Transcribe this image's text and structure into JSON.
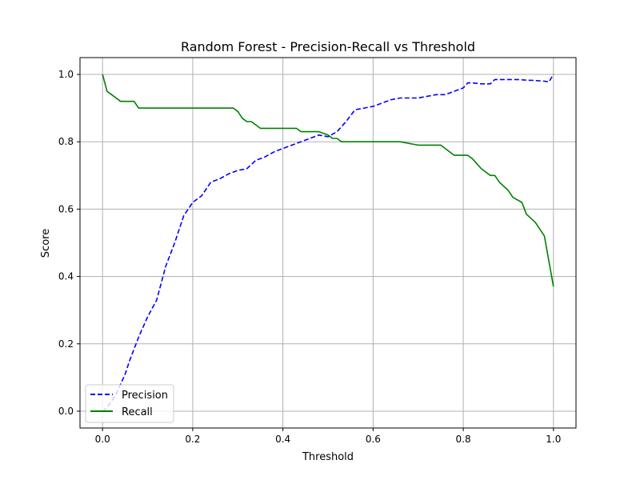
{
  "chart_data": {
    "type": "line",
    "title": "Random Forest - Precision-Recall vs Threshold",
    "xlabel": "Threshold",
    "ylabel": "Score",
    "xlim": [
      -0.05,
      1.05
    ],
    "ylim": [
      -0.05,
      1.05
    ],
    "x_ticks": [
      0.0,
      0.2,
      0.4,
      0.6,
      0.8,
      1.0
    ],
    "x_tick_labels": [
      "0.0",
      "0.2",
      "0.4",
      "0.6",
      "0.8",
      "1.0"
    ],
    "y_ticks": [
      0.0,
      0.2,
      0.4,
      0.6,
      0.8,
      1.0
    ],
    "y_tick_labels": [
      "0.0",
      "0.2",
      "0.4",
      "0.6",
      "0.8",
      "1.0"
    ],
    "grid": true,
    "legend_position": "lower-left",
    "series": [
      {
        "name": "Precision",
        "color": "#0000ff",
        "style": "dashed",
        "x": [
          0.0,
          0.01,
          0.02,
          0.03,
          0.04,
          0.05,
          0.06,
          0.08,
          0.1,
          0.12,
          0.14,
          0.16,
          0.18,
          0.2,
          0.22,
          0.24,
          0.26,
          0.28,
          0.3,
          0.32,
          0.34,
          0.36,
          0.38,
          0.4,
          0.42,
          0.44,
          0.46,
          0.48,
          0.5,
          0.52,
          0.54,
          0.56,
          0.58,
          0.6,
          0.62,
          0.64,
          0.66,
          0.68,
          0.7,
          0.72,
          0.74,
          0.76,
          0.78,
          0.8,
          0.81,
          0.82,
          0.84,
          0.86,
          0.87,
          0.88,
          0.9,
          0.92,
          0.94,
          0.96,
          0.98,
          0.99,
          1.0
        ],
        "values": [
          0.0,
          0.01,
          0.03,
          0.05,
          0.08,
          0.11,
          0.15,
          0.22,
          0.28,
          0.33,
          0.43,
          0.5,
          0.58,
          0.62,
          0.64,
          0.68,
          0.69,
          0.705,
          0.715,
          0.72,
          0.745,
          0.755,
          0.77,
          0.78,
          0.79,
          0.8,
          0.81,
          0.82,
          0.815,
          0.83,
          0.86,
          0.895,
          0.9,
          0.905,
          0.915,
          0.925,
          0.93,
          0.93,
          0.93,
          0.935,
          0.94,
          0.94,
          0.95,
          0.96,
          0.975,
          0.975,
          0.972,
          0.972,
          0.985,
          0.985,
          0.985,
          0.985,
          0.983,
          0.982,
          0.98,
          0.978,
          1.0
        ]
      },
      {
        "name": "Recall",
        "color": "#008000",
        "style": "solid",
        "x": [
          0.0,
          0.01,
          0.02,
          0.04,
          0.05,
          0.07,
          0.08,
          0.1,
          0.2,
          0.28,
          0.29,
          0.3,
          0.31,
          0.32,
          0.33,
          0.35,
          0.36,
          0.43,
          0.44,
          0.48,
          0.5,
          0.51,
          0.52,
          0.53,
          0.6,
          0.66,
          0.7,
          0.75,
          0.78,
          0.8,
          0.81,
          0.82,
          0.84,
          0.86,
          0.87,
          0.88,
          0.9,
          0.91,
          0.93,
          0.94,
          0.96,
          0.98,
          1.0
        ],
        "values": [
          1.0,
          0.95,
          0.94,
          0.92,
          0.92,
          0.92,
          0.9,
          0.9,
          0.9,
          0.9,
          0.9,
          0.89,
          0.87,
          0.86,
          0.86,
          0.84,
          0.84,
          0.84,
          0.83,
          0.83,
          0.82,
          0.81,
          0.81,
          0.8,
          0.8,
          0.8,
          0.79,
          0.79,
          0.76,
          0.76,
          0.76,
          0.75,
          0.72,
          0.7,
          0.7,
          0.68,
          0.655,
          0.635,
          0.62,
          0.585,
          0.56,
          0.52,
          0.37
        ]
      }
    ]
  }
}
